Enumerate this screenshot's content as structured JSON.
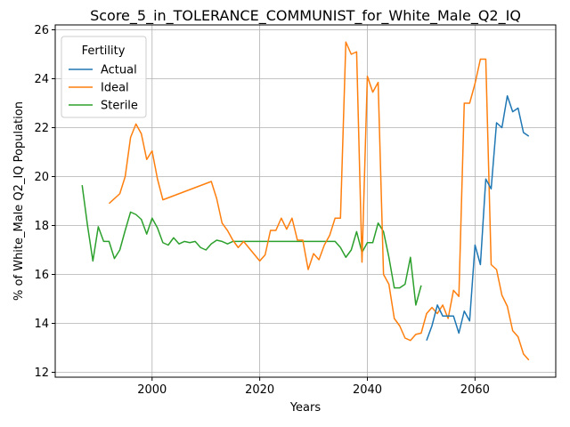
{
  "chart_data": {
    "type": "line",
    "title": "Score_5_in_TOLERANCE_COMMUNIST_for_White_Male_Q2_IQ",
    "xlabel": "Years",
    "ylabel": "% of White_Male Q2_IQ Population",
    "xlim": [
      1982,
      2075
    ],
    "ylim": [
      11.8,
      26.2
    ],
    "xticks": [
      2000,
      2020,
      2040,
      2060
    ],
    "yticks": [
      12,
      14,
      16,
      18,
      20,
      22,
      24,
      26
    ],
    "grid": true,
    "legend": {
      "title": "Fertility",
      "placement": "top-left"
    },
    "series": [
      {
        "name": "Actual",
        "color": "#1f77b4",
        "points": [
          [
            2051,
            13.3
          ],
          [
            2052,
            13.9
          ],
          [
            2053,
            14.75
          ],
          [
            2054,
            14.3
          ],
          [
            2055,
            14.3
          ],
          [
            2056,
            14.3
          ],
          [
            2057,
            13.6
          ],
          [
            2058,
            14.5
          ],
          [
            2059,
            14.1
          ],
          [
            2060,
            17.2
          ],
          [
            2061,
            16.4
          ],
          [
            2062,
            19.9
          ],
          [
            2063,
            19.5
          ],
          [
            2064,
            22.2
          ],
          [
            2065,
            22.0
          ],
          [
            2066,
            23.3
          ],
          [
            2067,
            22.65
          ],
          [
            2068,
            22.8
          ],
          [
            2069,
            21.8
          ],
          [
            2070,
            21.65
          ]
        ]
      },
      {
        "name": "Ideal",
        "color": "#ff7f0e",
        "points": [
          [
            1992,
            18.9
          ],
          [
            1994,
            19.3
          ],
          [
            1995,
            20.0
          ],
          [
            1996,
            21.6
          ],
          [
            1997,
            22.15
          ],
          [
            1998,
            21.75
          ],
          [
            1999,
            20.7
          ],
          [
            2000,
            21.05
          ],
          [
            2001,
            19.9
          ],
          [
            2002,
            19.05
          ],
          [
            2011,
            19.8
          ],
          [
            2012,
            19.1
          ],
          [
            2013,
            18.1
          ],
          [
            2014,
            17.8
          ],
          [
            2015,
            17.4
          ],
          [
            2016,
            17.1
          ],
          [
            2017,
            17.35
          ],
          [
            2020,
            16.55
          ],
          [
            2021,
            16.8
          ],
          [
            2022,
            17.8
          ],
          [
            2023,
            17.8
          ],
          [
            2024,
            18.3
          ],
          [
            2025,
            17.85
          ],
          [
            2026,
            18.3
          ],
          [
            2027,
            17.4
          ],
          [
            2028,
            17.4
          ],
          [
            2029,
            16.2
          ],
          [
            2030,
            16.85
          ],
          [
            2031,
            16.6
          ],
          [
            2032,
            17.2
          ],
          [
            2033,
            17.6
          ],
          [
            2034,
            18.3
          ],
          [
            2035,
            18.3
          ],
          [
            2036,
            25.5
          ],
          [
            2037,
            25.0
          ],
          [
            2038,
            25.1
          ],
          [
            2039,
            16.5
          ],
          [
            2040,
            24.1
          ],
          [
            2041,
            23.45
          ],
          [
            2042,
            23.85
          ],
          [
            2043,
            16.0
          ],
          [
            2044,
            15.6
          ],
          [
            2045,
            14.2
          ],
          [
            2046,
            13.9
          ],
          [
            2047,
            13.4
          ],
          [
            2048,
            13.3
          ],
          [
            2049,
            13.55
          ],
          [
            2050,
            13.6
          ],
          [
            2051,
            14.4
          ],
          [
            2052,
            14.65
          ],
          [
            2053,
            14.4
          ],
          [
            2054,
            14.75
          ],
          [
            2055,
            14.2
          ],
          [
            2056,
            15.35
          ],
          [
            2057,
            15.1
          ],
          [
            2058,
            23.0
          ],
          [
            2059,
            23.0
          ],
          [
            2060,
            23.8
          ],
          [
            2061,
            24.8
          ],
          [
            2062,
            24.8
          ],
          [
            2063,
            16.4
          ],
          [
            2064,
            16.2
          ],
          [
            2065,
            15.15
          ],
          [
            2066,
            14.7
          ],
          [
            2067,
            13.7
          ],
          [
            2068,
            13.45
          ],
          [
            2069,
            12.75
          ],
          [
            2070,
            12.5
          ]
        ]
      },
      {
        "name": "Sterile",
        "color": "#2ca02c",
        "points": [
          [
            1987,
            19.65
          ],
          [
            1988,
            18.0
          ],
          [
            1989,
            16.55
          ],
          [
            1990,
            17.95
          ],
          [
            1991,
            17.35
          ],
          [
            1992,
            17.35
          ],
          [
            1993,
            16.65
          ],
          [
            1994,
            17.0
          ],
          [
            1995,
            17.8
          ],
          [
            1996,
            18.55
          ],
          [
            1997,
            18.45
          ],
          [
            1998,
            18.25
          ],
          [
            1999,
            17.65
          ],
          [
            2000,
            18.3
          ],
          [
            2001,
            17.9
          ],
          [
            2002,
            17.3
          ],
          [
            2003,
            17.2
          ],
          [
            2004,
            17.5
          ],
          [
            2005,
            17.25
          ],
          [
            2006,
            17.35
          ],
          [
            2007,
            17.3
          ],
          [
            2008,
            17.35
          ],
          [
            2009,
            17.1
          ],
          [
            2010,
            17.0
          ],
          [
            2011,
            17.25
          ],
          [
            2012,
            17.4
          ],
          [
            2013,
            17.35
          ],
          [
            2014,
            17.25
          ],
          [
            2015,
            17.35
          ],
          [
            2016,
            17.35
          ],
          [
            2034,
            17.35
          ],
          [
            2035,
            17.1
          ],
          [
            2036,
            16.7
          ],
          [
            2037,
            17.0
          ],
          [
            2038,
            17.75
          ],
          [
            2039,
            16.9
          ],
          [
            2040,
            17.3
          ],
          [
            2041,
            17.3
          ],
          [
            2042,
            18.1
          ],
          [
            2043,
            17.75
          ],
          [
            2044,
            16.7
          ],
          [
            2045,
            15.45
          ],
          [
            2046,
            15.45
          ],
          [
            2047,
            15.6
          ],
          [
            2048,
            16.7
          ],
          [
            2049,
            14.75
          ],
          [
            2050,
            15.55
          ]
        ]
      }
    ]
  }
}
